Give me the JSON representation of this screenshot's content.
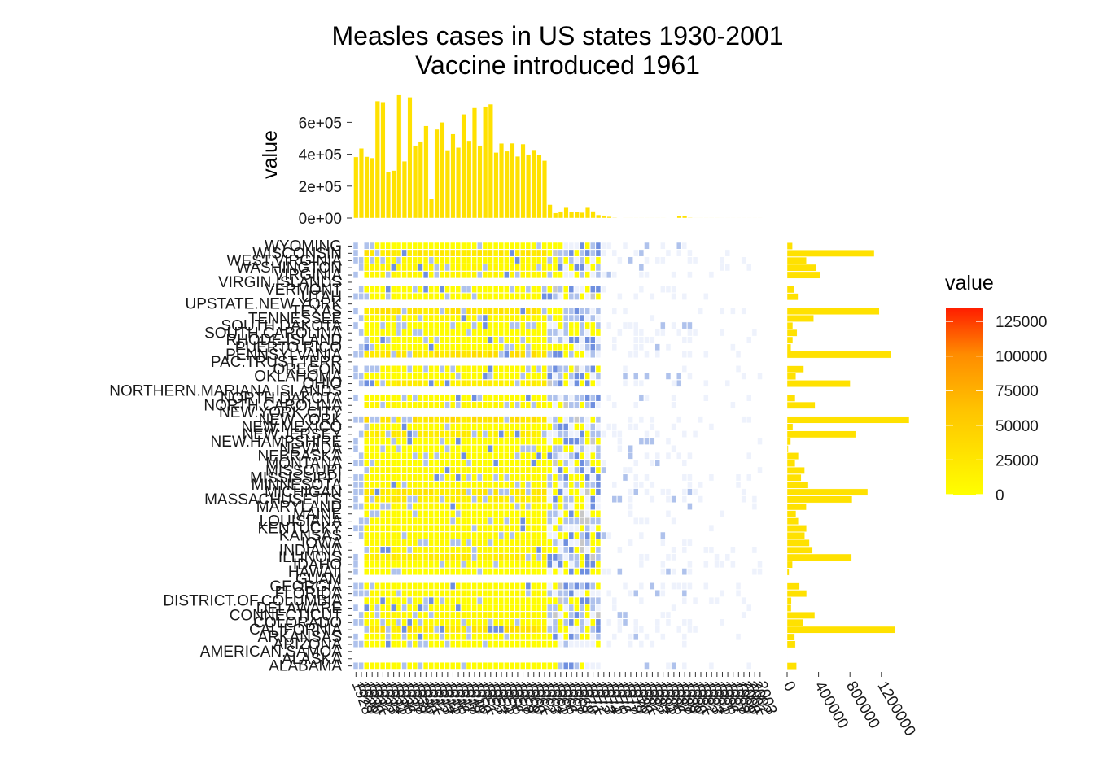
{
  "chart_data": {
    "type": "heatmap",
    "title": "Measles cases in US states 1930-2001",
    "subtitle": "Vaccine introduced 1961",
    "x": [
      1928,
      1929,
      1930,
      1931,
      1932,
      1933,
      1934,
      1935,
      1936,
      1937,
      1938,
      1939,
      1940,
      1941,
      1942,
      1943,
      1944,
      1945,
      1946,
      1947,
      1948,
      1949,
      1950,
      1951,
      1952,
      1953,
      1954,
      1955,
      1956,
      1957,
      1958,
      1959,
      1960,
      1961,
      1962,
      1963,
      1964,
      1965,
      1966,
      1967,
      1968,
      1969,
      1970,
      1971,
      1972,
      1973,
      1974,
      1975,
      1976,
      1977,
      1978,
      1979,
      1980,
      1981,
      1982,
      1983,
      1984,
      1985,
      1986,
      1987,
      1988,
      1989,
      1990,
      1991,
      1992,
      1993,
      1994,
      1995,
      1996,
      1997,
      1998,
      1999,
      2000,
      2001,
      2002,
      2003
    ],
    "states": [
      "ALABAMA",
      "ALASKA",
      "AMERICAN.SAMOA",
      "ARIZONA",
      "ARKANSAS",
      "CALIFORNIA",
      "COLORADO",
      "CONNECTICUT",
      "DELAWARE",
      "DISTRICT.OF.COLUMBIA",
      "FLORIDA",
      "GEORGIA",
      "GUAM",
      "HAWAII",
      "IDAHO",
      "ILLINOIS",
      "INDIANA",
      "IOWA",
      "KANSAS",
      "KENTUCKY",
      "LOUISIANA",
      "MAINE",
      "MARYLAND",
      "MASSACHUSETTS",
      "MICHIGAN",
      "MINNESOTA",
      "MISSISSIPPI",
      "MISSOURI",
      "MONTANA",
      "NEBRASKA",
      "NEVADA",
      "NEW.HAMPSHIRE",
      "NEW.JERSEY",
      "NEW.MEXICO",
      "NEW.YORK",
      "NEW.YORK.CITY",
      "NORTH.CAROLINA",
      "NORTH.DAKOTA",
      "NORTHERN.MARIANA.ISLANDS",
      "OHIO",
      "OKLAHOMA",
      "OREGON",
      "PAC.TRUST.TERR",
      "PENNSYLVANIA",
      "PUERTO.RICO",
      "RHODE.ISLAND",
      "SOUTH.CAROLINA",
      "SOUTH.DAKOTA",
      "TENNESSEE",
      "TEXAS",
      "UPSTATE.NEW.YORK",
      "UTAH",
      "VERMONT",
      "VIRGIN.ISLANDS",
      "VIRGINIA",
      "WASHINGTON",
      "WEST.VIRGINIA",
      "WISCONSIN",
      "WYOMING"
    ],
    "year_totals": [
      383000,
      437000,
      385000,
      377000,
      734000,
      728000,
      288000,
      298000,
      772000,
      356000,
      758000,
      455000,
      481000,
      578000,
      120000,
      556000,
      600000,
      426000,
      527000,
      442000,
      651000,
      485000,
      691000,
      455000,
      700000,
      714000,
      411000,
      468000,
      419000,
      469000,
      387000,
      464000,
      399000,
      428000,
      396000,
      360000,
      84000,
      32000,
      42000,
      65000,
      38000,
      40000,
      35000,
      65000,
      43000,
      20000,
      16000,
      9000,
      3000,
      2000,
      1000,
      1000,
      1000,
      1000,
      1000,
      1000,
      1000,
      1000,
      2000,
      2000,
      15000,
      13000,
      3000,
      1000,
      500,
      500,
      500,
      500,
      200,
      200,
      200,
      200,
      200,
      200,
      200,
      200
    ],
    "state_totals": [
      120000,
      0,
      0,
      105000,
      97000,
      1370000,
      203000,
      352000,
      52000,
      55000,
      248000,
      159000,
      0,
      25000,
      68000,
      822000,
      324000,
      284000,
      224000,
      247000,
      143000,
      113000,
      244000,
      828000,
      1026000,
      270000,
      179000,
      223000,
      102000,
      144000,
      15000,
      46000,
      872000,
      73000,
      1554000,
      0,
      356000,
      103000,
      0,
      803000,
      111000,
      212000,
      0,
      1323000,
      49000,
      72000,
      126000,
      72000,
      338000,
      1173000,
      0,
      139000,
      86000,
      0,
      424000,
      366000,
      245000,
      1109000,
      68000
    ],
    "x_axis_title": "",
    "y_axis_title": "",
    "top_ylabel": "value",
    "top_y_ticks": [
      "0e+00",
      "2e+05",
      "4e+05",
      "6e+05"
    ],
    "top_y_tick_values": [
      0,
      200000,
      400000,
      600000
    ],
    "right_x_ticks": [
      "0",
      "400000",
      "800000",
      "1200000"
    ],
    "right_x_tick_values": [
      0,
      400000,
      800000,
      1200000
    ],
    "legend": {
      "title": "value",
      "ticks": [
        "125000",
        "100000",
        "75000",
        "50000",
        "25000",
        "0"
      ],
      "tick_values": [
        125000,
        100000,
        75000,
        50000,
        25000,
        0
      ],
      "max": 135000,
      "position": "right"
    },
    "colors": {
      "bar": "#FFE100",
      "low": "#FFFF00",
      "mid": "#FF9A00",
      "high": "#FF0000",
      "post_vaccine_light": "#EEF2FC",
      "post_vaccine_mid": "#AFC2EC",
      "post_vaccine_dark": "#6F8FDF",
      "missing": "#C8C8C8"
    },
    "vaccine_year": 1961,
    "grid": false
  }
}
